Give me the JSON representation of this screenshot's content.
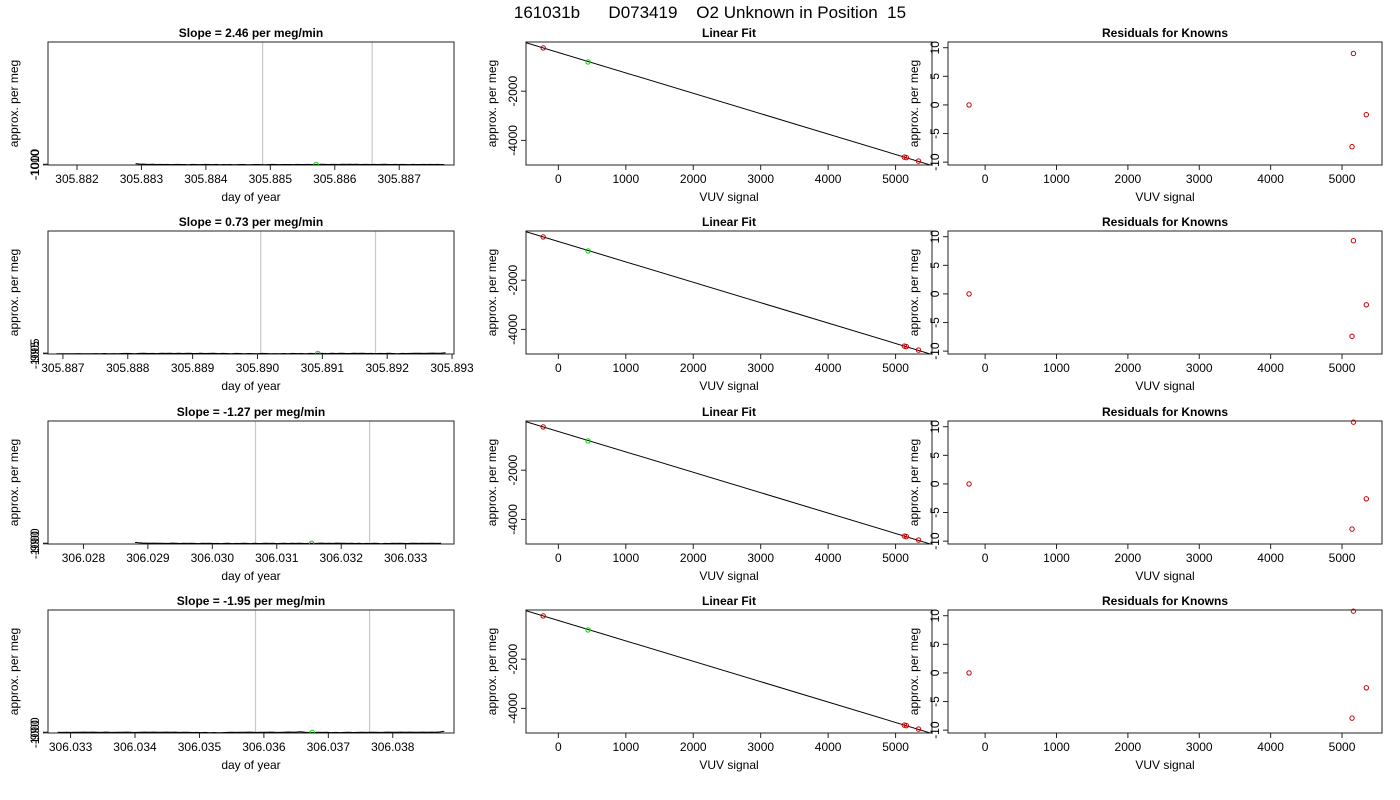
{
  "figure": {
    "title": "161031b      D073419    O2 Unknown in Position  15"
  },
  "chart_data": [
    {
      "type": "line",
      "title": "Slope =  2.46  per meg/min",
      "xlabel": "day of year",
      "ylabel": "approx. per meg",
      "xlim": [
        305.88155,
        305.88785
      ],
      "ylim": [
        -1012.5,
        1017.5
      ],
      "xticks": [
        "305.882",
        "305.883",
        "305.884",
        "305.885",
        "305.886",
        "305.887"
      ],
      "xtick_values": [
        305.882,
        305.883,
        305.884,
        305.885,
        305.886,
        305.887
      ],
      "yticks": [
        "-1010",
        "-1000"
      ],
      "ytick_values": [
        -1010,
        -1000
      ],
      "vlines": [
        305.88488,
        305.88658
      ],
      "marker": {
        "x": 305.88571,
        "y": -1003.8,
        "color": "#00dd00"
      },
      "series": [
        {
          "x_start": 305.88291,
          "x_end": 305.8877,
          "values": [
            -990,
            -996,
            -998,
            -1001,
            -1003,
            -1001,
            -1005,
            -1002,
            -1004,
            -1003,
            -1006,
            -1004,
            -1002,
            -1004,
            -1005,
            -1007,
            -1003,
            -1005,
            -1006,
            -1004,
            -1002,
            -1005,
            -1006,
            -1003,
            -1007,
            -1005,
            -1006,
            -1004,
            -1008,
            -1006,
            -1004,
            -1005,
            -1007,
            -1006,
            -1005,
            -1004,
            -1006,
            -1007,
            -1005,
            -1003,
            -1004,
            -1006,
            -1005,
            -1004,
            -1005,
            -1006,
            -1003,
            -1004,
            -1005,
            -1002,
            -1004,
            -1003,
            -1005,
            -1001,
            -1003,
            -1004,
            -1002,
            -1003,
            -1004,
            -999,
            -1002,
            -1000,
            -1003,
            -1001,
            -1004,
            -1002,
            -1003,
            -1005,
            -1002,
            -1004,
            -1003,
            -1001,
            -1004,
            -1005,
            -1003,
            -1004,
            -1002,
            -1005,
            -1006,
            -1003,
            -1004,
            -1005,
            -1003,
            -1004,
            -1002,
            -1004,
            -1003,
            -1005,
            -1004
          ]
        }
      ]
    },
    {
      "type": "line",
      "title": "Linear Fit",
      "xlabel": "VUV signal",
      "ylabel": "approx. per meg",
      "xlim": [
        -480,
        5540
      ],
      "ylim": [
        -5000,
        0
      ],
      "xticks": [
        "0",
        "1000",
        "2000",
        "3000",
        "4000",
        "5000"
      ],
      "xtick_values": [
        0,
        1000,
        2000,
        3000,
        4000,
        5000
      ],
      "yticks": [
        "-4000",
        "-2000"
      ],
      "ytick_values": [
        -4000,
        -2000
      ],
      "fit_line": {
        "x": [
          -480,
          5540
        ],
        "y": [
          -28,
          -5020
        ]
      },
      "points": [
        {
          "x": -225,
          "y": -240,
          "color": "#cc0000"
        },
        {
          "x": 5130,
          "y": -4680,
          "color": "#cc0000"
        },
        {
          "x": 5160,
          "y": -4700,
          "color": "#cc0000"
        },
        {
          "x": 5340,
          "y": -4840,
          "color": "#cc0000"
        },
        {
          "x": 440,
          "y": -810,
          "color": "#00dd00"
        }
      ]
    },
    {
      "type": "scatter",
      "title": "Residuals for Knowns",
      "xlabel": "VUV signal",
      "ylabel": "approx. per meg",
      "xlim": [
        -520,
        5560
      ],
      "ylim": [
        -10.5,
        11
      ],
      "xticks": [
        "0",
        "1000",
        "2000",
        "3000",
        "4000",
        "5000"
      ],
      "xtick_values": [
        0,
        1000,
        2000,
        3000,
        4000,
        5000
      ],
      "yticks": [
        "-10",
        "-5",
        "0",
        "5",
        "10"
      ],
      "ytick_values": [
        -10,
        -5,
        0,
        5,
        10
      ],
      "points": [
        {
          "x": -225,
          "y": 0,
          "color": "#cc0000"
        },
        {
          "x": 5140,
          "y": -7.3,
          "color": "#cc0000"
        },
        {
          "x": 5160,
          "y": 9.0,
          "color": "#cc0000"
        },
        {
          "x": 5340,
          "y": -1.7,
          "color": "#cc0000"
        }
      ]
    },
    {
      "type": "line",
      "title": "Slope =  0.73  per meg/min",
      "xlabel": "day of year",
      "ylabel": "approx. per meg",
      "xlim": [
        305.88677,
        305.89303
      ],
      "ylim": [
        -1009.5,
        1011.5
      ],
      "xticks": [
        "305.887",
        "305.888",
        "305.889",
        "305.890",
        "305.891",
        "305.892",
        "305.893"
      ],
      "xtick_values": [
        305.887,
        305.888,
        305.889,
        305.89,
        305.891,
        305.892,
        305.893
      ],
      "yticks": [
        "-1005",
        "-995"
      ],
      "ytick_values": [
        -1005,
        -995
      ],
      "vlines": [
        305.89005,
        305.89182
      ],
      "marker": {
        "x": 305.89093,
        "y": -1000,
        "color": "#00dd00"
      },
      "series": [
        {
          "x_start": 305.8869,
          "x_end": 305.8929,
          "values": [
            -1006,
            -1005,
            -1006,
            -1004,
            -1005,
            -1003,
            -1006,
            -1004,
            -1005,
            -1003,
            -1004,
            -1002,
            -1004,
            -1003,
            -1005,
            -1001,
            -999,
            -1002,
            -1004,
            -1000,
            -998,
            -1002,
            -999,
            -1003,
            -997,
            -1000,
            -996,
            -1001,
            -998,
            -1002,
            -996,
            -999,
            -1001,
            -997,
            -1002,
            -1000,
            -998,
            -1003,
            -999,
            -1001,
            -1004,
            -1000,
            -1002,
            -1005,
            -1001,
            -1003,
            -1004,
            -1000,
            -1002,
            -1006,
            -1003,
            -1005,
            -1002,
            -1004,
            -1000,
            -1003,
            -1001,
            -1004,
            -999,
            -1002,
            -997,
            -1000,
            -1003,
            -998,
            -1001,
            -996,
            -999,
            -1002,
            -997,
            -1000,
            -998,
            -1001,
            -999,
            -1003,
            -1000,
            -1002,
            -998,
            -1001,
            -1004,
            -999,
            -1002,
            -1000,
            -998,
            -996,
            -999,
            -997,
            -995,
            -997,
            -994,
            -988
          ]
        }
      ]
    },
    {
      "type": "line",
      "title": "Linear Fit",
      "xlabel": "VUV signal",
      "ylabel": "approx. per meg",
      "xlim": [
        -480,
        5540
      ],
      "ylim": [
        -5000,
        0
      ],
      "xticks": [
        "0",
        "1000",
        "2000",
        "3000",
        "4000",
        "5000"
      ],
      "xtick_values": [
        0,
        1000,
        2000,
        3000,
        4000,
        5000
      ],
      "yticks": [
        "-4000",
        "-2000"
      ],
      "ytick_values": [
        -4000,
        -2000
      ],
      "fit_line": {
        "x": [
          -480,
          5540
        ],
        "y": [
          -28,
          -5020
        ]
      },
      "points": [
        {
          "x": -225,
          "y": -240,
          "color": "#cc0000"
        },
        {
          "x": 5130,
          "y": -4680,
          "color": "#cc0000"
        },
        {
          "x": 5160,
          "y": -4700,
          "color": "#cc0000"
        },
        {
          "x": 5340,
          "y": -4840,
          "color": "#cc0000"
        },
        {
          "x": 440,
          "y": -810,
          "color": "#00dd00"
        }
      ]
    },
    {
      "type": "scatter",
      "title": "Residuals for Knowns",
      "xlabel": "VUV signal",
      "ylabel": "approx. per meg",
      "xlim": [
        -520,
        5560
      ],
      "ylim": [
        -10.5,
        11
      ],
      "xticks": [
        "0",
        "1000",
        "2000",
        "3000",
        "4000",
        "5000"
      ],
      "xtick_values": [
        0,
        1000,
        2000,
        3000,
        4000,
        5000
      ],
      "yticks": [
        "-10",
        "-5",
        "0",
        "5",
        "10"
      ],
      "ytick_values": [
        -10,
        -5,
        0,
        5,
        10
      ],
      "points": [
        {
          "x": -225,
          "y": 0,
          "color": "#cc0000"
        },
        {
          "x": 5140,
          "y": -7.4,
          "color": "#cc0000"
        },
        {
          "x": 5160,
          "y": 9.3,
          "color": "#cc0000"
        },
        {
          "x": 5340,
          "y": -1.9,
          "color": "#cc0000"
        }
      ]
    },
    {
      "type": "line",
      "title": "Slope =  -1.27  per meg/min",
      "xlabel": "day of year",
      "ylabel": "approx. per meg",
      "xlim": [
        306.02745,
        306.03375
      ],
      "ylim": [
        -1003,
        1004
      ],
      "xticks": [
        "306.028",
        "306.029",
        "306.030",
        "306.031",
        "306.032",
        "306.033"
      ],
      "xtick_values": [
        306.028,
        306.029,
        306.03,
        306.031,
        306.032,
        306.033
      ],
      "yticks": [
        "-1000",
        "-990"
      ],
      "ytick_values": [
        -1000,
        -990
      ],
      "vlines": [
        306.03067,
        306.03244
      ],
      "marker": {
        "x": 306.03154,
        "y": -992,
        "color": "#00dd00"
      },
      "series": [
        {
          "x_start": 306.0288,
          "x_end": 306.03355,
          "values": [
            -977,
            -983,
            -986,
            -989,
            -991,
            -988,
            -992,
            -990,
            -994,
            -993,
            -989,
            -991,
            -995,
            -992,
            -994,
            -990,
            -993,
            -996,
            -991,
            -994,
            -992,
            -995,
            -993,
            -997,
            -994,
            -992,
            -996,
            -993,
            -995,
            -991,
            -994,
            -997,
            -992,
            -995,
            -993,
            -990,
            -994,
            -992,
            -996,
            -993,
            -991,
            -995,
            -992,
            -994,
            -990,
            -993,
            -995,
            -991,
            -994,
            -992,
            -989,
            -993,
            -991,
            -994,
            -988,
            -992,
            -990,
            -994,
            -991,
            -995,
            -992,
            -996,
            -993,
            -995,
            -992,
            -994,
            -998,
            -993,
            -995,
            -992,
            -994,
            -991,
            -993,
            -995,
            -992,
            -990,
            -993,
            -991,
            -994,
            -992,
            -990,
            -993,
            -991
          ]
        }
      ]
    },
    {
      "type": "line",
      "title": "Linear Fit",
      "xlabel": "VUV signal",
      "ylabel": "approx. per meg",
      "xlim": [
        -480,
        5540
      ],
      "ylim": [
        -5000,
        0
      ],
      "xticks": [
        "0",
        "1000",
        "2000",
        "3000",
        "4000",
        "5000"
      ],
      "xtick_values": [
        0,
        1000,
        2000,
        3000,
        4000,
        5000
      ],
      "yticks": [
        "-4000",
        "-2000"
      ],
      "ytick_values": [
        -4000,
        -2000
      ],
      "fit_line": {
        "x": [
          -480,
          5540
        ],
        "y": [
          -28,
          -5020
        ]
      },
      "points": [
        {
          "x": -225,
          "y": -240,
          "color": "#cc0000"
        },
        {
          "x": 5130,
          "y": -4680,
          "color": "#cc0000"
        },
        {
          "x": 5160,
          "y": -4700,
          "color": "#cc0000"
        },
        {
          "x": 5340,
          "y": -4840,
          "color": "#cc0000"
        },
        {
          "x": 440,
          "y": -810,
          "color": "#00dd00"
        }
      ]
    },
    {
      "type": "scatter",
      "title": "Residuals for Knowns",
      "xlabel": "VUV signal",
      "ylabel": "approx. per meg",
      "xlim": [
        -520,
        5560
      ],
      "ylim": [
        -10.5,
        11
      ],
      "xticks": [
        "0",
        "1000",
        "2000",
        "3000",
        "4000",
        "5000"
      ],
      "xtick_values": [
        0,
        1000,
        2000,
        3000,
        4000,
        5000
      ],
      "yticks": [
        "-10",
        "-5",
        "0",
        "5",
        "10"
      ],
      "ytick_values": [
        -10,
        -5,
        0,
        5,
        10
      ],
      "points": [
        {
          "x": -225,
          "y": 0,
          "color": "#cc0000"
        },
        {
          "x": 5140,
          "y": -7.9,
          "color": "#cc0000"
        },
        {
          "x": 5160,
          "y": 10.8,
          "color": "#cc0000"
        },
        {
          "x": 5340,
          "y": -2.6,
          "color": "#cc0000"
        }
      ]
    },
    {
      "type": "line",
      "title": "Slope =  -1.95  per meg/min",
      "xlabel": "day of year",
      "ylabel": "approx. per meg",
      "xlim": [
        306.03265,
        306.03895
      ],
      "ylim": [
        -1003,
        1003
      ],
      "xticks": [
        "306.033",
        "306.034",
        "306.035",
        "306.036",
        "306.037",
        "306.038"
      ],
      "xtick_values": [
        306.033,
        306.034,
        306.035,
        306.036,
        306.037,
        306.038
      ],
      "yticks": [
        "-1000",
        "-990"
      ],
      "ytick_values": [
        -1000,
        -990
      ],
      "vlines": [
        306.03587,
        306.03764
      ],
      "marker": {
        "x": 306.03675,
        "y": -992,
        "color": "#00dd00"
      },
      "series": [
        {
          "x_start": 306.0328,
          "x_end": 306.0388,
          "values": [
            -992,
            -993,
            -991,
            -994,
            -990,
            -992,
            -989,
            -991,
            -988,
            -990,
            -993,
            -989,
            -991,
            -994,
            -990,
            -992,
            -989,
            -991,
            -993,
            -990,
            -988,
            -991,
            -989,
            -992,
            -990,
            -988,
            -991,
            -989,
            -993,
            -990,
            -992,
            -995,
            -993,
            -996,
            -994,
            -998,
            -995,
            -1000,
            -996,
            -993,
            -991,
            -994,
            -990,
            -992,
            -989,
            -991,
            -993,
            -990,
            -992,
            -988,
            -991,
            -993,
            -990,
            -987,
            -989,
            -986,
            -984,
            -990,
            -993,
            -995,
            -992,
            -994,
            -991,
            -996,
            -993,
            -997,
            -994,
            -992,
            -995,
            -993,
            -991,
            -994,
            -992,
            -990,
            -993,
            -991,
            -989,
            -992,
            -990,
            -988,
            -991,
            -989,
            -992,
            -990,
            -988,
            -991,
            -989,
            -990,
            -985,
            -975
          ]
        }
      ]
    },
    {
      "type": "line",
      "title": "Linear Fit",
      "xlabel": "VUV signal",
      "ylabel": "approx. per meg",
      "xlim": [
        -480,
        5540
      ],
      "ylim": [
        -5000,
        0
      ],
      "xticks": [
        "0",
        "1000",
        "2000",
        "3000",
        "4000",
        "5000"
      ],
      "xtick_values": [
        0,
        1000,
        2000,
        3000,
        4000,
        5000
      ],
      "yticks": [
        "-4000",
        "-2000"
      ],
      "ytick_values": [
        -4000,
        -2000
      ],
      "fit_line": {
        "x": [
          -480,
          5540
        ],
        "y": [
          -28,
          -5020
        ]
      },
      "points": [
        {
          "x": -225,
          "y": -240,
          "color": "#cc0000"
        },
        {
          "x": 5130,
          "y": -4680,
          "color": "#cc0000"
        },
        {
          "x": 5160,
          "y": -4700,
          "color": "#cc0000"
        },
        {
          "x": 5340,
          "y": -4840,
          "color": "#cc0000"
        },
        {
          "x": 440,
          "y": -810,
          "color": "#00dd00"
        }
      ]
    },
    {
      "type": "scatter",
      "title": "Residuals for Knowns",
      "xlabel": "VUV signal",
      "ylabel": "approx. per meg",
      "xlim": [
        -520,
        5560
      ],
      "ylim": [
        -10.5,
        11
      ],
      "xticks": [
        "0",
        "1000",
        "2000",
        "3000",
        "4000",
        "5000"
      ],
      "xtick_values": [
        0,
        1000,
        2000,
        3000,
        4000,
        5000
      ],
      "yticks": [
        "-10",
        "-5",
        "0",
        "5",
        "10"
      ],
      "ytick_values": [
        -10,
        -5,
        0,
        5,
        10
      ],
      "points": [
        {
          "x": -225,
          "y": 0,
          "color": "#cc0000"
        },
        {
          "x": 5140,
          "y": -7.9,
          "color": "#cc0000"
        },
        {
          "x": 5160,
          "y": 10.8,
          "color": "#cc0000"
        },
        {
          "x": 5340,
          "y": -2.6,
          "color": "#cc0000"
        }
      ]
    }
  ]
}
